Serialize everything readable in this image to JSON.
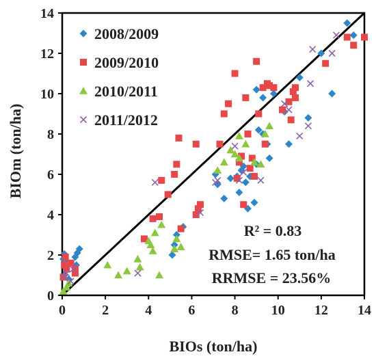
{
  "chart_data": {
    "type": "scatter",
    "xlabel": "BIOs (ton/ha)",
    "ylabel": "BIOm (ton/ha)",
    "xlim": [
      0,
      14
    ],
    "ylim": [
      0,
      14
    ],
    "xticks": [
      "0",
      "2",
      "4",
      "6",
      "8",
      "10",
      "12",
      "14"
    ],
    "yticks": [
      "0",
      "2",
      "4",
      "6",
      "8",
      "10",
      "12",
      "14"
    ],
    "grid": false,
    "legend_position": "top-left",
    "reference_line": {
      "from": [
        0,
        0
      ],
      "to": [
        14,
        14
      ],
      "color": "#000000"
    },
    "annotations": [
      "R² = 0.83",
      "RMSE= 1.65 ton/ha",
      "RRMSE = 23.56%"
    ],
    "series": [
      {
        "name": "2008/2009",
        "marker": "diamond",
        "color": "#2E86C8",
        "points": [
          [
            0.05,
            1.8
          ],
          [
            0.1,
            2.05
          ],
          [
            0.15,
            1.7
          ],
          [
            0.2,
            1.3
          ],
          [
            0.6,
            1.9
          ],
          [
            0.7,
            2.1
          ],
          [
            0.8,
            2.3
          ],
          [
            0.65,
            1.5
          ],
          [
            0.1,
            1.0
          ],
          [
            0.3,
            0.8
          ],
          [
            5.2,
            2.5
          ],
          [
            5.3,
            3.0
          ],
          [
            5.6,
            3.4
          ],
          [
            5.1,
            2.0
          ],
          [
            7.2,
            5.5
          ],
          [
            7.5,
            4.8
          ],
          [
            7.8,
            5.8
          ],
          [
            8.1,
            5.9
          ],
          [
            8.2,
            5.1
          ],
          [
            8.3,
            6.2
          ],
          [
            8.4,
            6.4
          ],
          [
            8.5,
            5.6
          ],
          [
            8.6,
            4.3
          ],
          [
            8.9,
            4.6
          ],
          [
            9.0,
            6.5
          ],
          [
            9.1,
            8.2
          ],
          [
            9.3,
            8.0
          ],
          [
            9.5,
            7.5
          ],
          [
            9.6,
            6.8
          ],
          [
            9.8,
            10.0
          ],
          [
            9.0,
            10.2
          ],
          [
            9.3,
            9.8
          ],
          [
            10.3,
            9.1
          ],
          [
            10.5,
            7.5
          ],
          [
            11.0,
            10.8
          ],
          [
            11.4,
            8.8
          ],
          [
            12.0,
            12.0
          ],
          [
            12.5,
            10.0
          ],
          [
            13.2,
            13.5
          ],
          [
            13.5,
            12.9
          ],
          [
            7.1,
            6.0
          ],
          [
            8.7,
            5.9
          ]
        ]
      },
      {
        "name": "2009/2010",
        "marker": "square",
        "color": "#E8474A",
        "points": [
          [
            0.1,
            1.5
          ],
          [
            0.15,
            1.9
          ],
          [
            0.2,
            1.3
          ],
          [
            0.4,
            1.6
          ],
          [
            0.6,
            1.1
          ],
          [
            0.6,
            1.3
          ],
          [
            0.05,
            0.9
          ],
          [
            3.8,
            2.8
          ],
          [
            4.2,
            3.8
          ],
          [
            4.5,
            3.9
          ],
          [
            4.6,
            5.7
          ],
          [
            4.9,
            5.0
          ],
          [
            5.2,
            6.0
          ],
          [
            5.3,
            6.5
          ],
          [
            5.4,
            7.8
          ],
          [
            5.5,
            3.3
          ],
          [
            6.2,
            4.0
          ],
          [
            6.2,
            7.5
          ],
          [
            6.3,
            4.3
          ],
          [
            6.4,
            4.5
          ],
          [
            7.3,
            7.5
          ],
          [
            7.5,
            9.0
          ],
          [
            7.7,
            9.5
          ],
          [
            8.0,
            11.0
          ],
          [
            8.1,
            5.8
          ],
          [
            8.2,
            6.6
          ],
          [
            8.3,
            6.9
          ],
          [
            8.4,
            4.5
          ],
          [
            8.5,
            9.8
          ],
          [
            8.6,
            8.0
          ],
          [
            8.7,
            6.3
          ],
          [
            8.8,
            6.8
          ],
          [
            8.9,
            5.9
          ],
          [
            9.0,
            11.6
          ],
          [
            9.1,
            9.0
          ],
          [
            9.3,
            10.3
          ],
          [
            9.4,
            7.5
          ],
          [
            9.5,
            10.5
          ],
          [
            9.6,
            10.4
          ],
          [
            9.8,
            10.3
          ],
          [
            10.2,
            9.2
          ],
          [
            10.5,
            9.6
          ],
          [
            10.6,
            8.7
          ],
          [
            10.7,
            10.1
          ],
          [
            10.8,
            9.8
          ],
          [
            10.8,
            10.3
          ],
          [
            12.2,
            11.5
          ],
          [
            13.2,
            12.8
          ],
          [
            13.5,
            12.4
          ],
          [
            14.0,
            12.8
          ]
        ]
      },
      {
        "name": "2010/2011",
        "marker": "triangle",
        "color": "#8DC63F",
        "points": [
          [
            0.05,
            0.2
          ],
          [
            0.2,
            0.4
          ],
          [
            0.3,
            0.6
          ],
          [
            2.1,
            1.5
          ],
          [
            2.6,
            1.0
          ],
          [
            3.0,
            1.2
          ],
          [
            3.5,
            1.8
          ],
          [
            3.6,
            1.4
          ],
          [
            4.0,
            2.7
          ],
          [
            4.1,
            2.5
          ],
          [
            4.2,
            2.2
          ],
          [
            4.3,
            3.1
          ],
          [
            4.5,
            1.0
          ],
          [
            4.6,
            3.5
          ],
          [
            5.3,
            2.8
          ],
          [
            5.2,
            2.3
          ],
          [
            5.5,
            2.4
          ],
          [
            7.2,
            6.2
          ],
          [
            7.5,
            6.6
          ],
          [
            7.8,
            7.2
          ],
          [
            8.0,
            7.0
          ],
          [
            8.2,
            6.8
          ],
          [
            8.2,
            7.9
          ],
          [
            8.5,
            7.5
          ],
          [
            8.9,
            6.6
          ],
          [
            9.2,
            6.5
          ],
          [
            9.4,
            8.0
          ],
          [
            9.6,
            8.4
          ]
        ]
      },
      {
        "name": "2011/2012",
        "marker": "x",
        "color": "#8E63A9",
        "points": [
          [
            0.1,
            0.9
          ],
          [
            0.2,
            1.1
          ],
          [
            0.4,
            0.7
          ],
          [
            0.5,
            1.3
          ],
          [
            3.5,
            1.1
          ],
          [
            4.3,
            5.6
          ],
          [
            6.4,
            4.1
          ],
          [
            7.1,
            5.6
          ],
          [
            7.2,
            5.7
          ],
          [
            8.0,
            7.4
          ],
          [
            8.2,
            5.7
          ],
          [
            8.4,
            6.1
          ],
          [
            9.2,
            5.7
          ],
          [
            10.3,
            9.5
          ],
          [
            10.5,
            9.2
          ],
          [
            11.0,
            7.9
          ],
          [
            11.4,
            8.4
          ],
          [
            11.5,
            10.5
          ],
          [
            11.6,
            12.2
          ],
          [
            12.5,
            12.0
          ],
          [
            12.7,
            12.9
          ]
        ]
      }
    ]
  }
}
